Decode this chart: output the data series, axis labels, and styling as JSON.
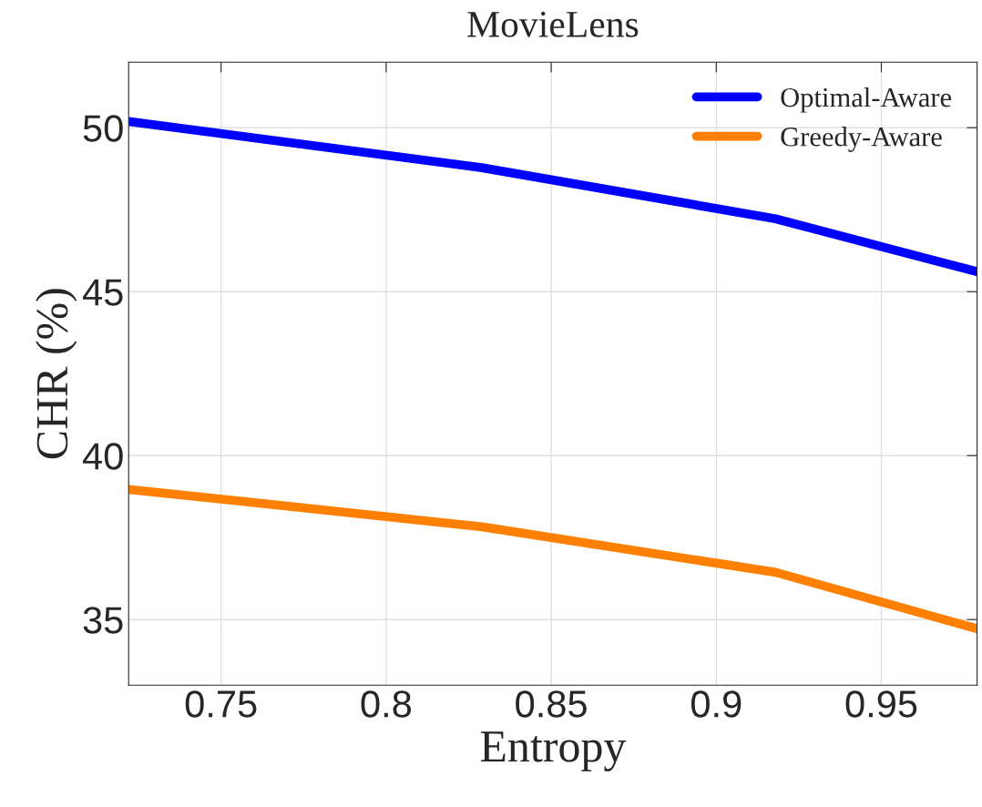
{
  "chart_data": {
    "type": "line",
    "title": "MovieLens",
    "xlabel": "Entropy",
    "ylabel": "CHR (%)",
    "x": [
      0.722,
      0.829,
      0.918,
      0.979
    ],
    "series": [
      {
        "name": "Optimal-Aware",
        "color": "#0000ff",
        "values": [
          50.19,
          48.78,
          47.22,
          45.61
        ]
      },
      {
        "name": "Greedy-Aware",
        "color": "#ff8000",
        "values": [
          38.97,
          37.83,
          36.44,
          34.72
        ]
      }
    ],
    "xlim": [
      0.722,
      0.979
    ],
    "xticks": [
      0.75,
      0.8,
      0.85,
      0.9,
      0.95
    ],
    "ylim": [
      33,
      52
    ],
    "yticks": [
      35,
      40,
      45,
      50
    ],
    "grid": true,
    "legend": "top right",
    "line_style": "solid"
  }
}
